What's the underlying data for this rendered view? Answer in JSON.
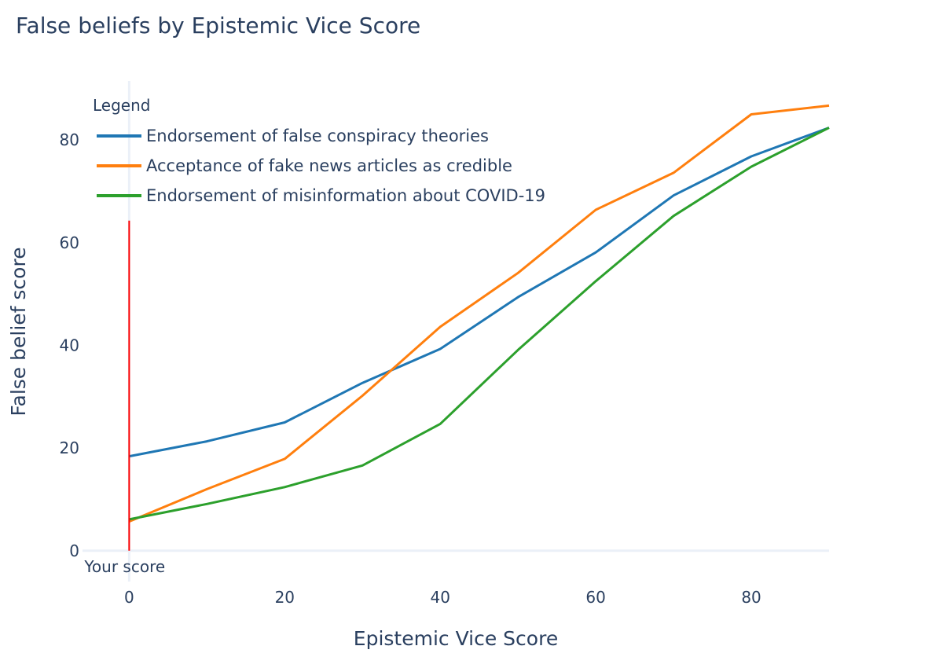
{
  "chart_data": {
    "type": "line",
    "title": "False beliefs by Epistemic Vice Score",
    "xlabel": "Epistemic Vice Score",
    "ylabel": "False belief score",
    "x": [
      0,
      10,
      20,
      30,
      40,
      50,
      60,
      70,
      80,
      90
    ],
    "xlim": [
      -6,
      90
    ],
    "ylim": [
      -6,
      91.5
    ],
    "xticks": [
      0,
      20,
      40,
      60,
      80
    ],
    "yticks": [
      0,
      20,
      40,
      60,
      80
    ],
    "grid": false,
    "zeroline": true,
    "legend": {
      "title": "Legend",
      "placement": "top-left"
    },
    "series": [
      {
        "name": "Endorsement of false conspiracy theories",
        "color": "#1f77b4",
        "values": [
          18.4,
          21.3,
          25.0,
          32.7,
          39.3,
          49.4,
          58.1,
          69.2,
          76.8,
          82.4
        ]
      },
      {
        "name": "Acceptance of fake news articles as credible",
        "color": "#ff7f0e",
        "values": [
          5.7,
          12.0,
          17.9,
          30.2,
          43.6,
          54.1,
          66.4,
          73.6,
          85.0,
          86.7
        ]
      },
      {
        "name": "Endorsement of misinformation about COVID-19",
        "color": "#2ca02c",
        "values": [
          6.1,
          9.1,
          12.4,
          16.6,
          24.7,
          39.1,
          52.5,
          65.2,
          74.8,
          82.4
        ]
      }
    ],
    "annotations": [
      {
        "type": "vline",
        "x": 0,
        "y_from": 0,
        "y_to": 64.3,
        "color": "#ff0000",
        "label": "Your score"
      }
    ]
  }
}
